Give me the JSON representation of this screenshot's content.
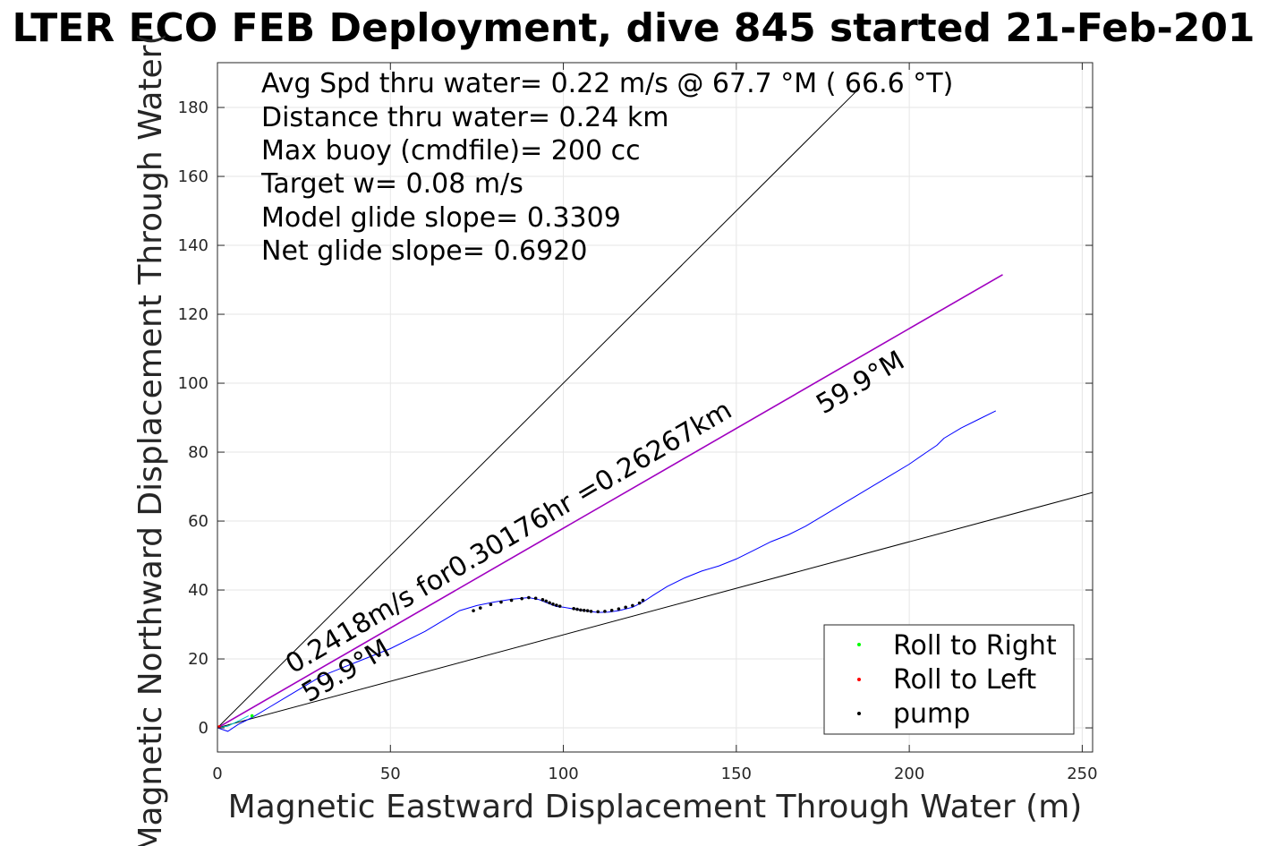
{
  "chart_data": {
    "type": "line",
    "title": "LTER ECO FEB Deployment, dive 845 started 21-Feb-201",
    "xlabel": "Magnetic Eastward Displacement Through Water (m)",
    "ylabel": "Magnetic Northward Displacement Through Water(",
    "xlim": [
      0,
      253
    ],
    "ylim": [
      -7,
      193
    ],
    "xticks": [
      0,
      50,
      100,
      150,
      200,
      250
    ],
    "yticks": [
      0,
      20,
      40,
      60,
      80,
      100,
      120,
      140,
      160,
      180
    ],
    "grid": true,
    "stats": [
      "Avg Spd thru water=  0.22 m/s @  67.7 °M ( 66.6 °T)",
      "Distance thru water=  0.24 km",
      "Max buoy (cmdfile)= 200 cc",
      "Target w= 0.08 m/s",
      "Model glide slope= 0.3309",
      "Net glide slope= 0.6920"
    ],
    "annotations": {
      "upper_heading": "59.9°M",
      "speed": "0.2418m/s for0.30176hr =0.26267km",
      "lower_heading": "59.9°M"
    },
    "legend": {
      "placement": "bottom-right",
      "entries": [
        {
          "label": "Roll to Right",
          "color": "#00ff00"
        },
        {
          "label": "Roll to Left",
          "color": "#ff0000"
        },
        {
          "label": "pump",
          "color": "#000000"
        }
      ]
    },
    "series": [
      {
        "role": "upper-bound",
        "color": "#000000",
        "x": [
          0,
          185
        ],
        "y": [
          0,
          185
        ]
      },
      {
        "role": "lower-bound",
        "color": "#000000",
        "x": [
          0,
          253
        ],
        "y": [
          0,
          68.3
        ]
      },
      {
        "role": "heading-line",
        "color": "#a000c0",
        "x": [
          0,
          227
        ],
        "y": [
          0,
          131.5
        ]
      },
      {
        "role": "track",
        "color": "#0000ff",
        "x": [
          0,
          3,
          6,
          10,
          15,
          20,
          25,
          30,
          40,
          50,
          60,
          65,
          70,
          75,
          80,
          85,
          90,
          93,
          96,
          98,
          100,
          103,
          106,
          110,
          113,
          116,
          120,
          123,
          126,
          130,
          135,
          140,
          145,
          150,
          155,
          160,
          165,
          170,
          175,
          180,
          185,
          190,
          195,
          200,
          205,
          208,
          210,
          215,
          220,
          225
        ],
        "y": [
          0,
          -1,
          1,
          3,
          6,
          9,
          12,
          15,
          19,
          23,
          28,
          31,
          34,
          35.5,
          36.5,
          37.3,
          37.8,
          37.2,
          36,
          35.2,
          35,
          34.5,
          34,
          33.5,
          33.6,
          34,
          35,
          36.5,
          38.5,
          41,
          43.5,
          45.5,
          47,
          49,
          51.5,
          54,
          56,
          58.5,
          61.5,
          64.5,
          67.5,
          70.5,
          73.5,
          76.5,
          80,
          82,
          84,
          87,
          89.5,
          92
        ]
      },
      {
        "role": "surface-drift",
        "color": "#00c8c8",
        "x": [
          0,
          3,
          6,
          9
        ],
        "y": [
          0,
          0.5,
          2,
          3.5
        ]
      },
      {
        "role": "pump",
        "color": "#000000",
        "x": [
          74,
          76,
          79,
          82,
          85,
          88,
          90,
          92,
          94,
          95,
          96,
          97,
          98,
          99,
          103,
          104,
          105,
          106,
          107,
          108,
          110,
          112,
          114,
          116,
          118,
          120,
          122,
          123
        ],
        "y": [
          34,
          34.8,
          35.8,
          36.5,
          37,
          37.5,
          37.8,
          37.6,
          37.2,
          36.8,
          36.3,
          35.9,
          35.6,
          35.3,
          34.6,
          34.4,
          34.2,
          34.1,
          34,
          33.8,
          33.7,
          33.8,
          34.1,
          34.5,
          35,
          35.5,
          36.2,
          37
        ]
      },
      {
        "role": "roll-right",
        "color": "#00ff00",
        "x": [
          10
        ],
        "y": [
          3.5
        ]
      },
      {
        "role": "roll-left",
        "color": "#ff0000",
        "x": [
          0.5
        ],
        "y": [
          0.3
        ]
      }
    ]
  }
}
